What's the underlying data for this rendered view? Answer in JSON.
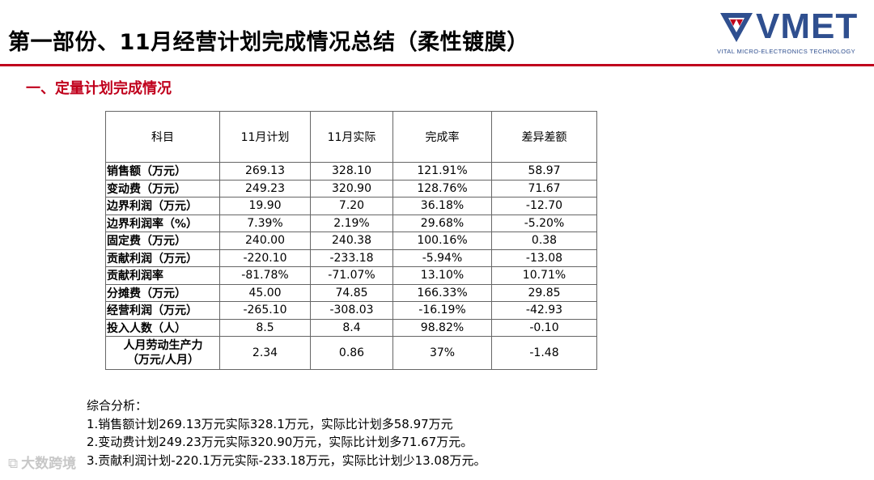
{
  "slide": {
    "title": "第一部份、11月经营计划完成情况总结（柔性镀膜）",
    "section": "一、定量计划完成情况"
  },
  "logo": {
    "name": "VMET",
    "tagline": "VITAL MICRO-ELECTRONICS TECHNOLOGY",
    "colors": {
      "primary": "#2f4f8f",
      "accent": "#c0001c"
    }
  },
  "table": {
    "headers": [
      "科目",
      "11月计划",
      "11月实际",
      "完成率",
      "差异差额"
    ],
    "rows": [
      [
        "销售额（万元）",
        "269.13",
        "328.10",
        "121.91%",
        "58.97"
      ],
      [
        "变动费（万元）",
        "249.23",
        "320.90",
        "128.76%",
        "71.67"
      ],
      [
        "边界利润（万元）",
        "19.90",
        "7.20",
        "36.18%",
        "-12.70"
      ],
      [
        "边界利润率（%）",
        "7.39%",
        "2.19%",
        "29.68%",
        "-5.20%"
      ],
      [
        "固定费（万元）",
        "240.00",
        "240.38",
        "100.16%",
        "0.38"
      ],
      [
        "贡献利润（万元）",
        "-220.10",
        "-233.18",
        "-5.94%",
        "-13.08"
      ],
      [
        "贡献利润率",
        "-81.78%",
        "-71.07%",
        "13.10%",
        "10.71%"
      ],
      [
        "分摊费（万元）",
        "45.00",
        "74.85",
        "166.33%",
        "29.85"
      ],
      [
        "经营利润（万元）",
        "-265.10",
        "-308.03",
        "-16.19%",
        "-42.93"
      ],
      [
        "投入人数（人）",
        "8.5",
        "8.4",
        "98.82%",
        "-0.10"
      ]
    ],
    "last_row": {
      "label_line1": "人月劳动生产力",
      "label_line2": "（万元/人月）",
      "values": [
        "2.34",
        "0.86",
        "37%",
        "-1.48"
      ]
    }
  },
  "summary": {
    "heading": "综合分析：",
    "lines": [
      "1.销售额计划269.13万元实际328.1万元，实际比计划多58.97万元",
      "2.变动费计划249.23万元实际320.90万元，实际比计划多71.67万元。",
      "3.贡献利润计划-220.1万元实际-233.18万元，实际比计划少13.08万元。"
    ]
  },
  "watermark": {
    "text": "大数跨境"
  }
}
